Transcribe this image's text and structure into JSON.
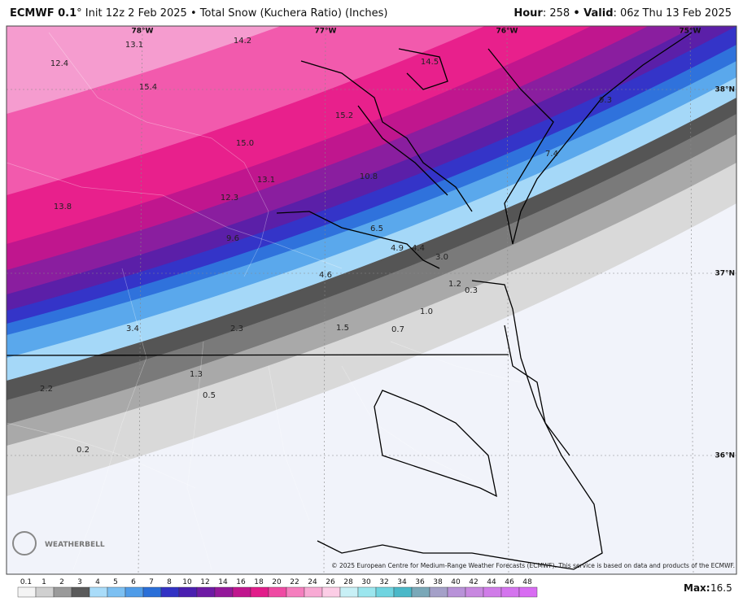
{
  "header": {
    "model": "ECMWF 0.1",
    "title": "° Init 12z 2 Feb 2025 • Total Snow (Kuchera Ratio) (Inches)",
    "hour_label": "Hour",
    "hour": "258",
    "valid_label": "• Valid",
    "valid": "06z Thu 13 Feb 2025"
  },
  "map": {
    "longitudes": [
      "78°W",
      "77°W",
      "76°W",
      "75°W"
    ],
    "latitudes": [
      "38°N",
      "37°N",
      "36°N"
    ],
    "snow_labels": [
      "13.1",
      "14.2",
      "14.5",
      "12.4",
      "15.4",
      "15.2",
      "9.3",
      "15.0",
      "7.4",
      "10.8",
      "13.1",
      "12.3",
      "13.8",
      "6.5",
      "9.6",
      "4.9",
      "4.4",
      "3.0",
      "4.6",
      "1.2",
      "0.3",
      "1.0",
      "3.4",
      "2.3",
      "1.5",
      "0.7",
      "1.3",
      "2.2",
      "0.5",
      "0.2"
    ],
    "watermark": "WEATHERBELL",
    "copyright": "© 2025 European Centre for Medium-Range Weather Forecasts (ECMWF). This service is based on data and products of the ECMWF."
  },
  "colorbar": {
    "labels": [
      "0.1",
      "1",
      "2",
      "3",
      "4",
      "5",
      "6",
      "7",
      "8",
      "10",
      "12",
      "14",
      "16",
      "18",
      "20",
      "22",
      "24",
      "26",
      "28",
      "30",
      "32",
      "34",
      "36",
      "38",
      "40",
      "42",
      "44",
      "46",
      "48"
    ]
  },
  "footer": {
    "max_label": "Max:",
    "max": "16.5"
  }
}
